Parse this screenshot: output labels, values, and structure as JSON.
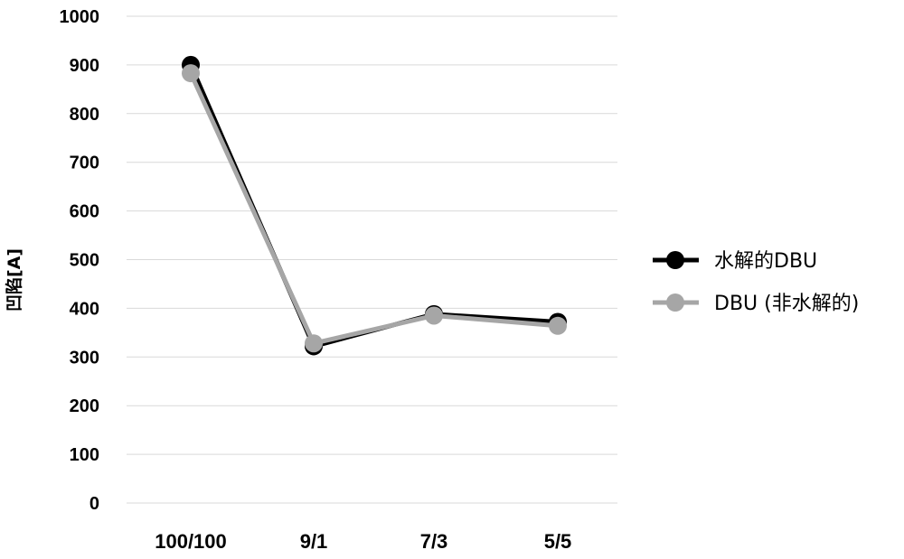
{
  "chart_data": {
    "type": "line",
    "categories": [
      "100/100",
      "9/1",
      "7/3",
      "5/5"
    ],
    "ylabel": "凹陷[A]",
    "xlabel": "",
    "title": "",
    "ylim": [
      0,
      1000
    ],
    "yticks": [
      0,
      100,
      200,
      300,
      400,
      500,
      600,
      700,
      800,
      900,
      1000
    ],
    "grid": true,
    "legend": "right",
    "series": [
      {
        "name": "水解的DBU",
        "values": [
          900,
          322,
          388,
          372
        ],
        "color": "#000000"
      },
      {
        "name": "DBU (非水解的)",
        "values": [
          883,
          328,
          385,
          364
        ],
        "color": "#a6a6a6"
      }
    ]
  }
}
